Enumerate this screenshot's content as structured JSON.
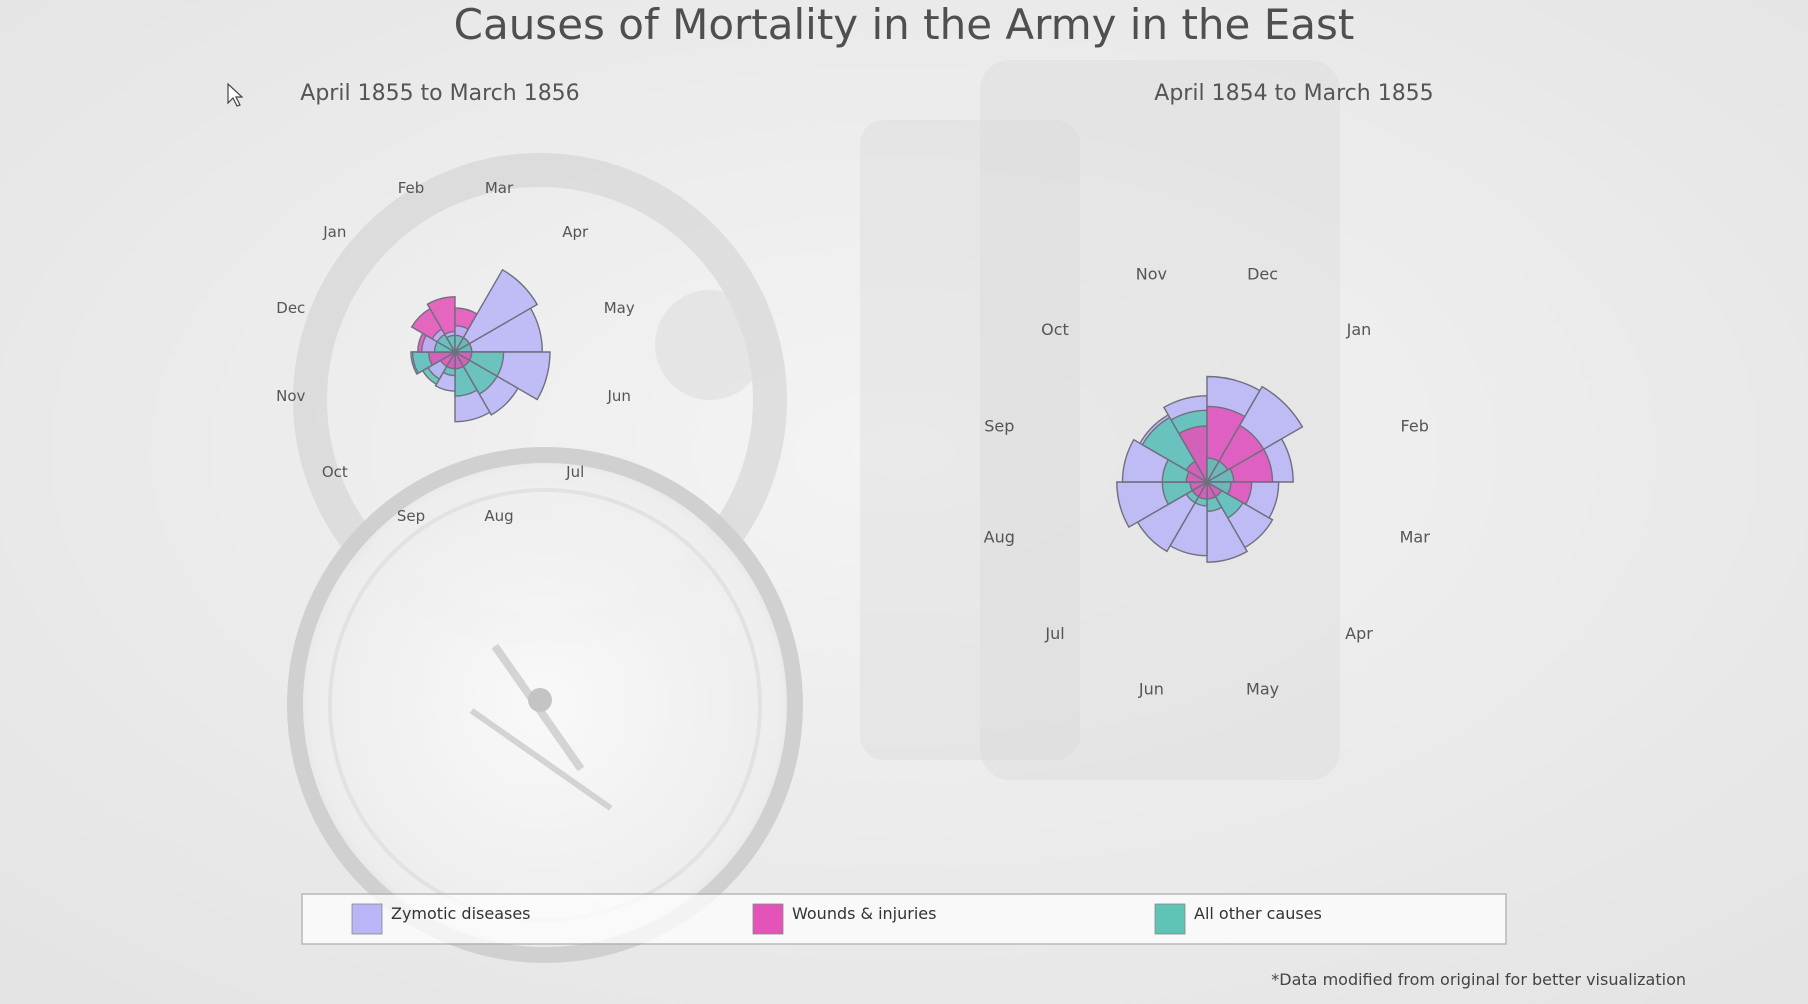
{
  "chart_data": {
    "type": "polar-area",
    "title": "Causes of Mortality in the Army in the East",
    "note": "*Data modified from original for better visualization",
    "colors": {
      "zymotic": "#b9b5f7",
      "wounds": "#e353b8",
      "other": "#5fc3b6"
    },
    "legend": {
      "position": "bottom",
      "entries": [
        {
          "key": "zymotic",
          "label": "Zymotic diseases"
        },
        {
          "key": "wounds",
          "label": "Wounds & injuries"
        },
        {
          "key": "other",
          "label": "All other causes"
        }
      ]
    },
    "charts": [
      {
        "name": "right",
        "subtitle": "April 1855 to March 1856",
        "months": [
          "Apr",
          "May",
          "Jun",
          "Jul",
          "Aug",
          "Sep",
          "Oct",
          "Nov",
          "Dec",
          "Jan",
          "Feb",
          "Mar"
        ],
        "series": [
          {
            "key": "zymotic",
            "values": [
              65,
              55,
              65,
              38,
              35,
              11,
              7,
              14,
              8,
              5,
              3,
              5
            ]
          },
          {
            "key": "wounds",
            "values": [
              2,
              2,
              2,
              2,
              2,
              2,
              2,
              5,
              10,
              18,
              22,
              14
            ]
          },
          {
            "key": "other",
            "values": [
              2,
              2,
              17,
              17,
              14,
              4,
              10,
              13,
              3,
              3,
              2,
              2
            ]
          }
        ]
      },
      {
        "name": "left",
        "subtitle": "April 1854 to March 1855",
        "months": [
          "Apr",
          "May",
          "Jun",
          "Jul",
          "Aug",
          "Sep",
          "Oct",
          "Nov",
          "Dec",
          "Jan",
          "Feb",
          "Mar"
        ],
        "series": [
          {
            "key": "zymotic",
            "values": [
              40,
              45,
              38,
              45,
              57,
              50,
              42,
              52,
              78,
              85,
              52,
              36
            ]
          },
          {
            "key": "wounds",
            "values": [
              2,
              2,
              2,
              2,
              2,
              3,
              4,
              22,
              40,
              30,
              30,
              14
            ]
          },
          {
            "key": "other",
            "values": [
              12,
              6,
              4,
              4,
              14,
              14,
              39,
              36,
              4,
              4,
              5,
              4
            ]
          }
        ]
      }
    ]
  }
}
